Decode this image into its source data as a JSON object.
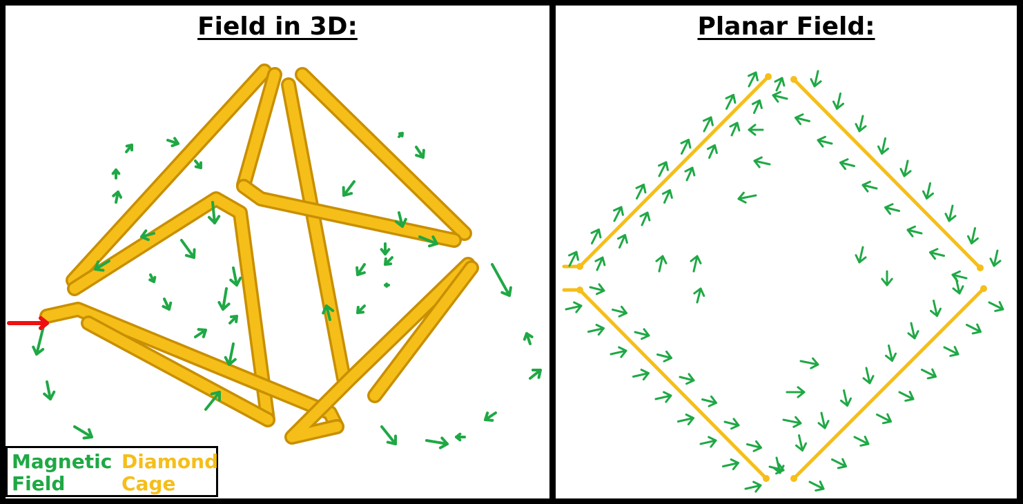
{
  "left_panel": {
    "title": "Field in 3D:"
  },
  "right_panel": {
    "title": "Planar Field:"
  },
  "legend": {
    "field_label": "Magnetic\nField",
    "cage_label": "Diamond\nCage"
  },
  "colors": {
    "field": "#1fa845",
    "cage": "#f5be19",
    "cage_shade": "#c88f00",
    "source": "#ee1111"
  }
}
